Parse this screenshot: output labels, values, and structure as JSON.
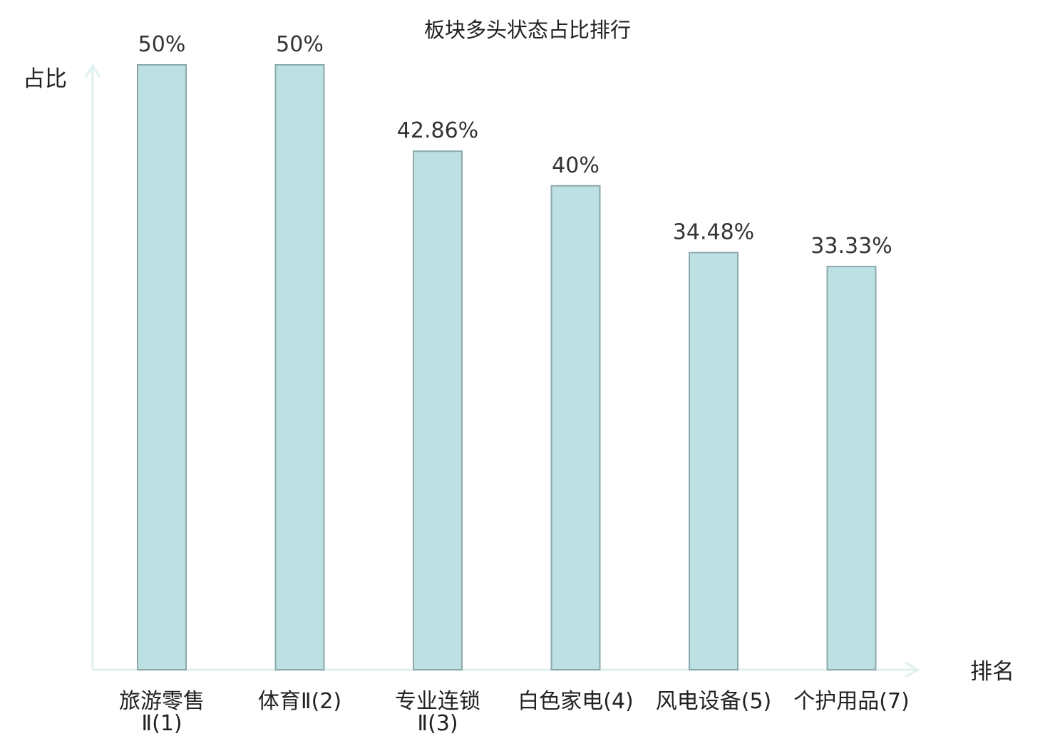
{
  "chart_data": {
    "type": "bar",
    "title": "板块多头状态占比排行",
    "xlabel": "排名",
    "ylabel": "占比",
    "categories": [
      [
        "旅游零售",
        "Ⅱ(1)"
      ],
      [
        "体育Ⅱ(2)"
      ],
      [
        "专业连锁",
        "Ⅱ(3)"
      ],
      [
        "白色家电(4)"
      ],
      [
        "风电设备(5)"
      ],
      [
        "个护用品(7)"
      ]
    ],
    "values": [
      50,
      50,
      42.86,
      40,
      34.48,
      33.33
    ],
    "value_labels": [
      "50%",
      "50%",
      "42.86%",
      "40%",
      "34.48%",
      "33.33%"
    ],
    "highlight_index": 5,
    "ylim": [
      0,
      50
    ],
    "grid": false,
    "legend": "none",
    "colors": {
      "bar_fill": "#bde0e3",
      "bar_stroke": "#8ba9ad",
      "axis": "#dff1ee",
      "text": "#222222",
      "value_text": "#333333",
      "highlight": "#dd0000"
    }
  }
}
